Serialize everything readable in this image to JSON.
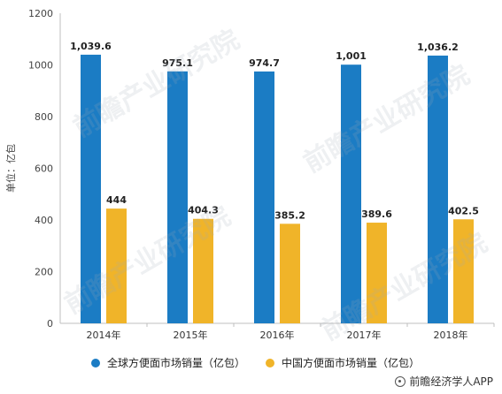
{
  "watermark_text": "前瞻产业研究院",
  "chart_data": {
    "type": "bar",
    "categories": [
      "2014年",
      "2015年",
      "2016年",
      "2017年",
      "2018年"
    ],
    "series": [
      {
        "name": "全球方便面市场销量（亿包）",
        "color": "#1B7CC4",
        "values": [
          1039.6,
          975.1,
          974.7,
          1001,
          1036.2
        ],
        "labels": [
          "1,039.6",
          "975.1",
          "974.7",
          "1,001",
          "1,036.2"
        ]
      },
      {
        "name": "中国方便面市场销量（亿包）",
        "color": "#F0B429",
        "values": [
          444,
          404.3,
          385.2,
          389.6,
          402.5
        ],
        "labels": [
          "444",
          "404.3",
          "385.2",
          "389.6",
          "402.5"
        ]
      }
    ],
    "ylabel": "单位：亿包",
    "ylim": [
      0,
      1200
    ],
    "yticks": [
      0,
      200,
      400,
      600,
      800,
      1000,
      1200
    ],
    "grid": false,
    "legend_position": "bottom"
  },
  "source": {
    "text": "前瞻经济学人APP"
  }
}
